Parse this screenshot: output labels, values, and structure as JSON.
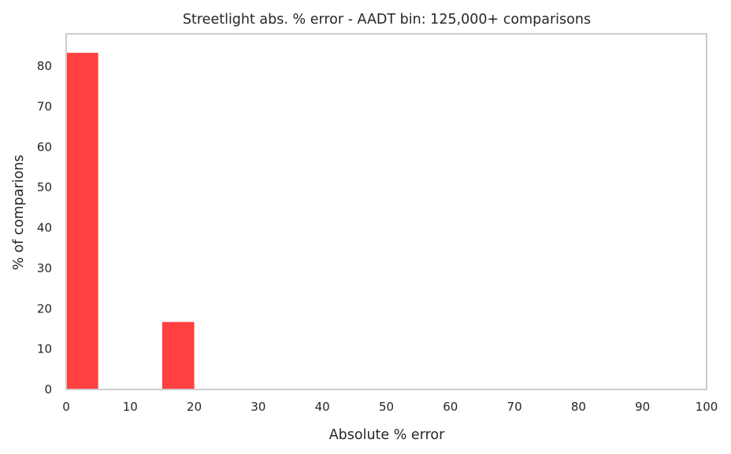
{
  "chart_data": {
    "type": "bar",
    "title": "Streetlight abs. % error - AADT bin: 125,000+ comparisons",
    "xlabel": "Absolute % error",
    "ylabel": "% of comparions",
    "xlim": [
      0,
      100
    ],
    "ylim": [
      0,
      88
    ],
    "bin_width": 5,
    "xticks": [
      0,
      10,
      20,
      30,
      40,
      50,
      60,
      70,
      80,
      90,
      100
    ],
    "yticks": [
      0,
      10,
      20,
      30,
      40,
      50,
      60,
      70,
      80
    ],
    "bars": [
      {
        "x_start": 0,
        "x_end": 5,
        "value": 83.3
      },
      {
        "x_start": 15,
        "x_end": 20,
        "value": 16.7
      }
    ],
    "grid": false,
    "legend": "none",
    "bar_color": "#ff4040",
    "frame_color": "#cccccc"
  }
}
